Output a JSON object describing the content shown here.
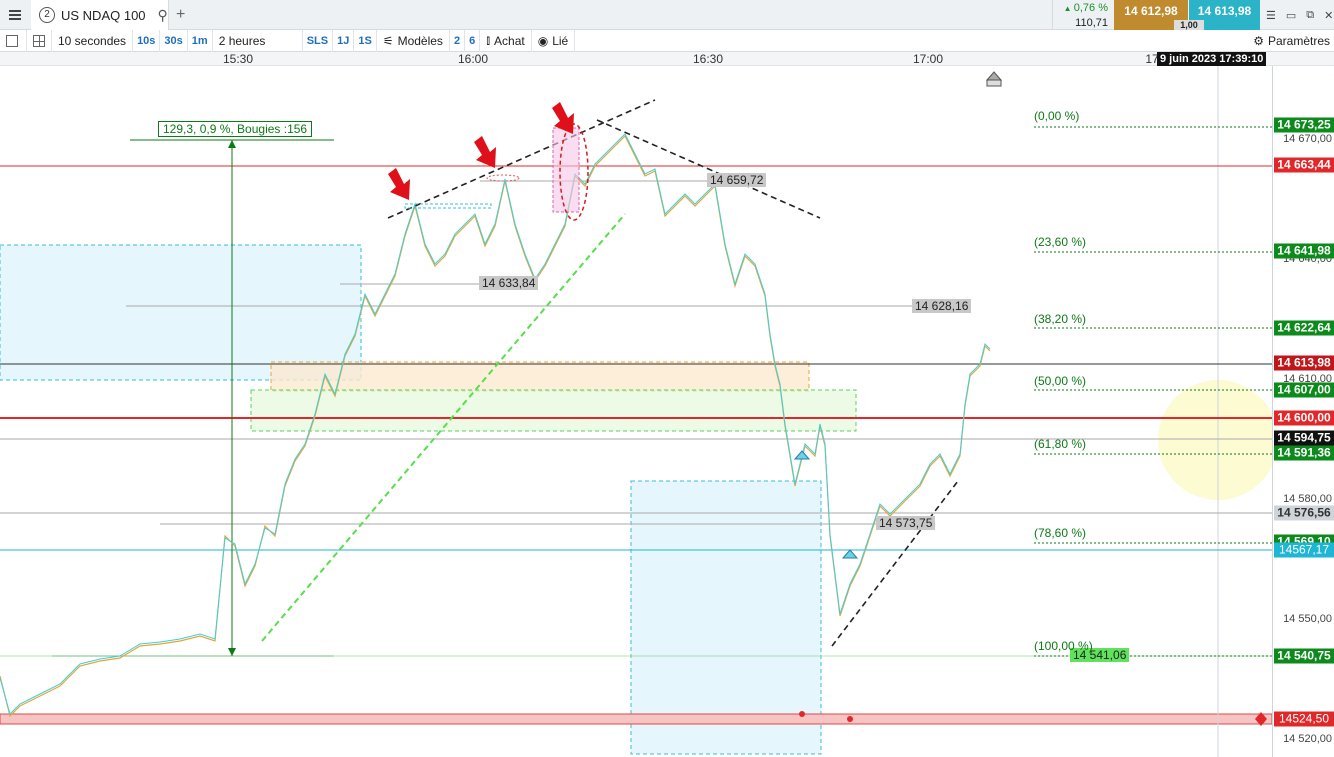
{
  "tabs": {
    "tab_number": "2",
    "instrument": "US NDAQ 100",
    "add_symbol": "+"
  },
  "quote": {
    "change_pct": "0,76 %",
    "change_abs": "110,71",
    "bid": "14 612,98",
    "ask": "14 613,98",
    "spread": "1,00"
  },
  "toolbar": {
    "interval": "10 secondes",
    "quick_intervals": [
      "10s",
      "30s",
      "1m"
    ],
    "range": "2 heures",
    "quick_ranges": [
      "SLS",
      "1J",
      "1S"
    ],
    "models": "Modèles",
    "n1": "2",
    "n2": "6",
    "buy": "Achat",
    "linked": "Lié",
    "settings": "Paramètres"
  },
  "time_axis": {
    "labels": [
      "15:30",
      "16:00",
      "16:30",
      "17:00"
    ],
    "cursor_date": "9 juin 2023 17:39:10",
    "partial": "17"
  },
  "chart": {
    "measure_label": "129,3, 0,9 %, Bougies :156",
    "inline_tags": [
      "14 659,72",
      "14 633,84",
      "14 628,16",
      "14 573,75",
      "14 541,06"
    ],
    "fib_levels": [
      "(0,00 %)",
      "(23,60 %)",
      "(38,20 %)",
      "(50,00 %)",
      "(61,80 %)",
      "(78,60 %)",
      "(100,00 %)"
    ]
  },
  "price_axis": {
    "ticks": [
      "14 670,00",
      "14 640,00",
      "14 610,00",
      "14 580,00",
      "14 550,00",
      "14 520,00"
    ],
    "tags": [
      {
        "label": "14 673,25",
        "color": "#0c8a1c"
      },
      {
        "label": "14 663,44",
        "color": "#e0282a"
      },
      {
        "label": "14 641,98",
        "color": "#0c8a1c"
      },
      {
        "label": "14 622,64",
        "color": "#0c8a1c"
      },
      {
        "label": "14 613,98",
        "color": "#c0181a"
      },
      {
        "label": "14 607,00",
        "color": "#0c8a1c"
      },
      {
        "label": "14 600,00",
        "color": "#e0282a"
      },
      {
        "label": "14 594,75",
        "color": "#111111"
      },
      {
        "label": "14 591,36",
        "color": "#0c8a1c"
      },
      {
        "label": "14 576,56",
        "color": "#cfd4da"
      },
      {
        "label": "14 569,10",
        "color": "#0c8a1c"
      },
      {
        "label": "14567,17",
        "color": "#1fb6d6"
      },
      {
        "label": "14 540,75",
        "color": "#0c8a1c"
      },
      {
        "label": "14524,50",
        "color": "#e0282a"
      }
    ]
  }
}
